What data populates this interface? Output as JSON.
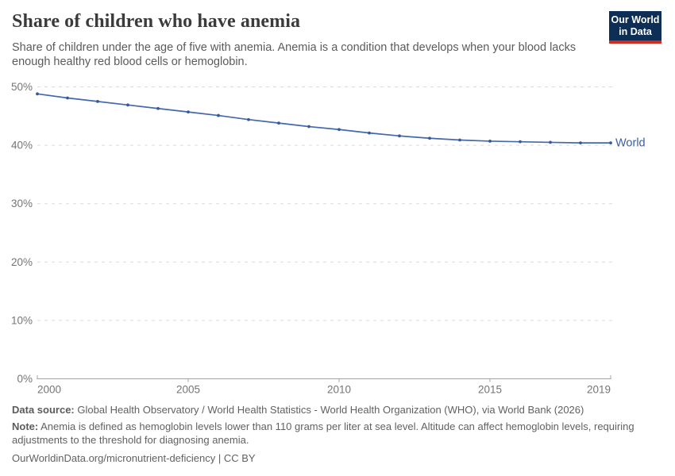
{
  "header": {
    "title": "Share of children who have anemia",
    "subtitle": "Share of children under the age of five with anemia. Anemia is a condition that develops when your blood lacks enough healthy red blood cells or hemoglobin.",
    "logo": {
      "line1": "Our World",
      "line2": "in Data"
    }
  },
  "chart_data": {
    "type": "line",
    "title": "Share of children who have anemia",
    "x": [
      2000,
      2001,
      2002,
      2003,
      2004,
      2005,
      2006,
      2007,
      2008,
      2009,
      2010,
      2011,
      2012,
      2013,
      2014,
      2015,
      2016,
      2017,
      2018,
      2019
    ],
    "series": [
      {
        "name": "World",
        "values": [
          48.8,
          48.1,
          47.5,
          46.9,
          46.3,
          45.7,
          45.1,
          44.4,
          43.8,
          43.2,
          42.7,
          42.1,
          41.6,
          41.2,
          40.9,
          40.7,
          40.6,
          40.5,
          40.4,
          40.4
        ]
      }
    ],
    "xlabel": "",
    "ylabel": "",
    "ylim": [
      0,
      50
    ],
    "xlim": [
      2000,
      2019
    ],
    "ytick_values": [
      0,
      10,
      20,
      30,
      40,
      50
    ],
    "ytick_labels": [
      "0%",
      "10%",
      "20%",
      "30%",
      "40%",
      "50%"
    ],
    "xtick_values": [
      2000,
      2005,
      2010,
      2015,
      2019
    ],
    "xtick_labels": [
      "2000",
      "2005",
      "2010",
      "2015",
      "2019"
    ],
    "grid": "horizontal-dashed",
    "legend_position": "end-of-line-label",
    "end_label": "World"
  },
  "footer": {
    "data_source_label": "Data source:",
    "data_source": "Global Health Observatory / World Health Statistics - World Health Organization (WHO), via World Bank (2026)",
    "note_label": "Note:",
    "note": "Anemia is defined as hemoglobin levels lower than 110 grams per liter at sea level. Altitude can affect hemoglobin levels, requiring adjustments to the threshold for diagnosing anemia.",
    "link": "OurWorldinData.org/micronutrient-deficiency | CC BY"
  },
  "colors": {
    "line": "#4368ac",
    "point": "#39589c",
    "series_label": "#3a5fa3",
    "gridline": "#dcdcdc",
    "axis_line": "#a3a3a3",
    "tick_label": "#757575",
    "logo_bg": "#0e2f55",
    "logo_stripe": "#d42b20"
  }
}
